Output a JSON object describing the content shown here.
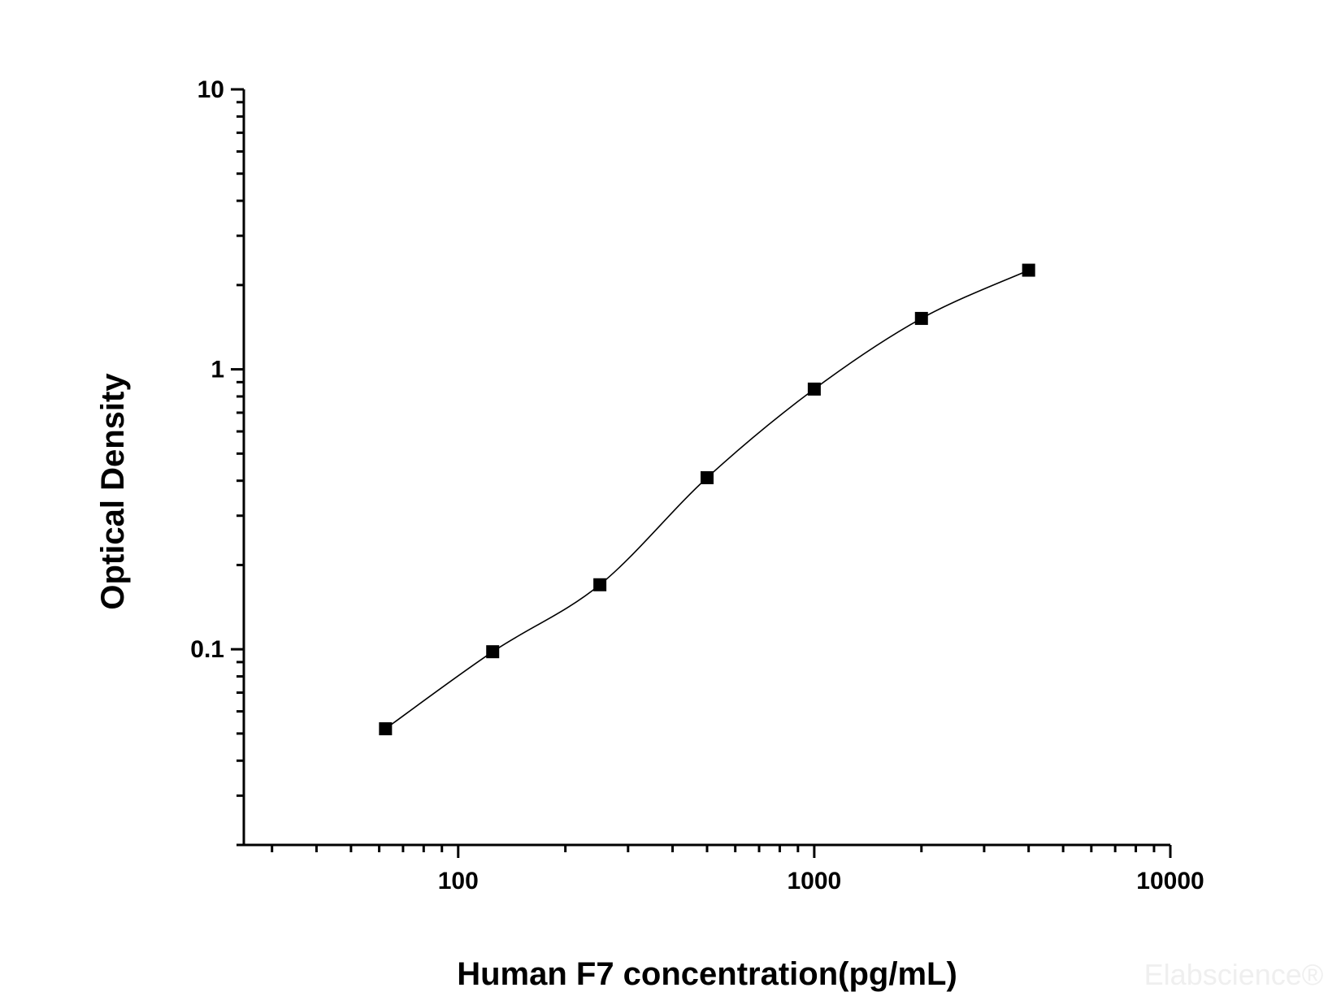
{
  "chart_data": {
    "type": "scatter",
    "title": "",
    "xlabel": "Human F7 concentration(pg/mL)",
    "ylabel": "Optical Density",
    "x_scale": "log",
    "y_scale": "log",
    "xlim": [
      25,
      10000
    ],
    "ylim": [
      0.02,
      10
    ],
    "x_ticks": [
      {
        "value": 100,
        "label": "100"
      },
      {
        "value": 1000,
        "label": "1000"
      },
      {
        "value": 10000,
        "label": "10000"
      }
    ],
    "y_ticks": [
      {
        "value": 0.1,
        "label": "0.1"
      },
      {
        "value": 1,
        "label": "1"
      },
      {
        "value": 10,
        "label": "10"
      }
    ],
    "grid": false,
    "legend": "none",
    "marker": "square",
    "colors": {
      "marker": "#000000",
      "curve": "#000000",
      "axis": "#000000",
      "watermark": "#efefef"
    },
    "series": [
      {
        "points": [
          {
            "x": 62.5,
            "y": 0.052
          },
          {
            "x": 125,
            "y": 0.098
          },
          {
            "x": 250,
            "y": 0.17
          },
          {
            "x": 500,
            "y": 0.41
          },
          {
            "x": 1000,
            "y": 0.85
          },
          {
            "x": 2000,
            "y": 1.52
          },
          {
            "x": 4000,
            "y": 2.26
          }
        ],
        "fit": "four-parameter logistic curve"
      }
    ],
    "watermark": "Elabscience®"
  }
}
